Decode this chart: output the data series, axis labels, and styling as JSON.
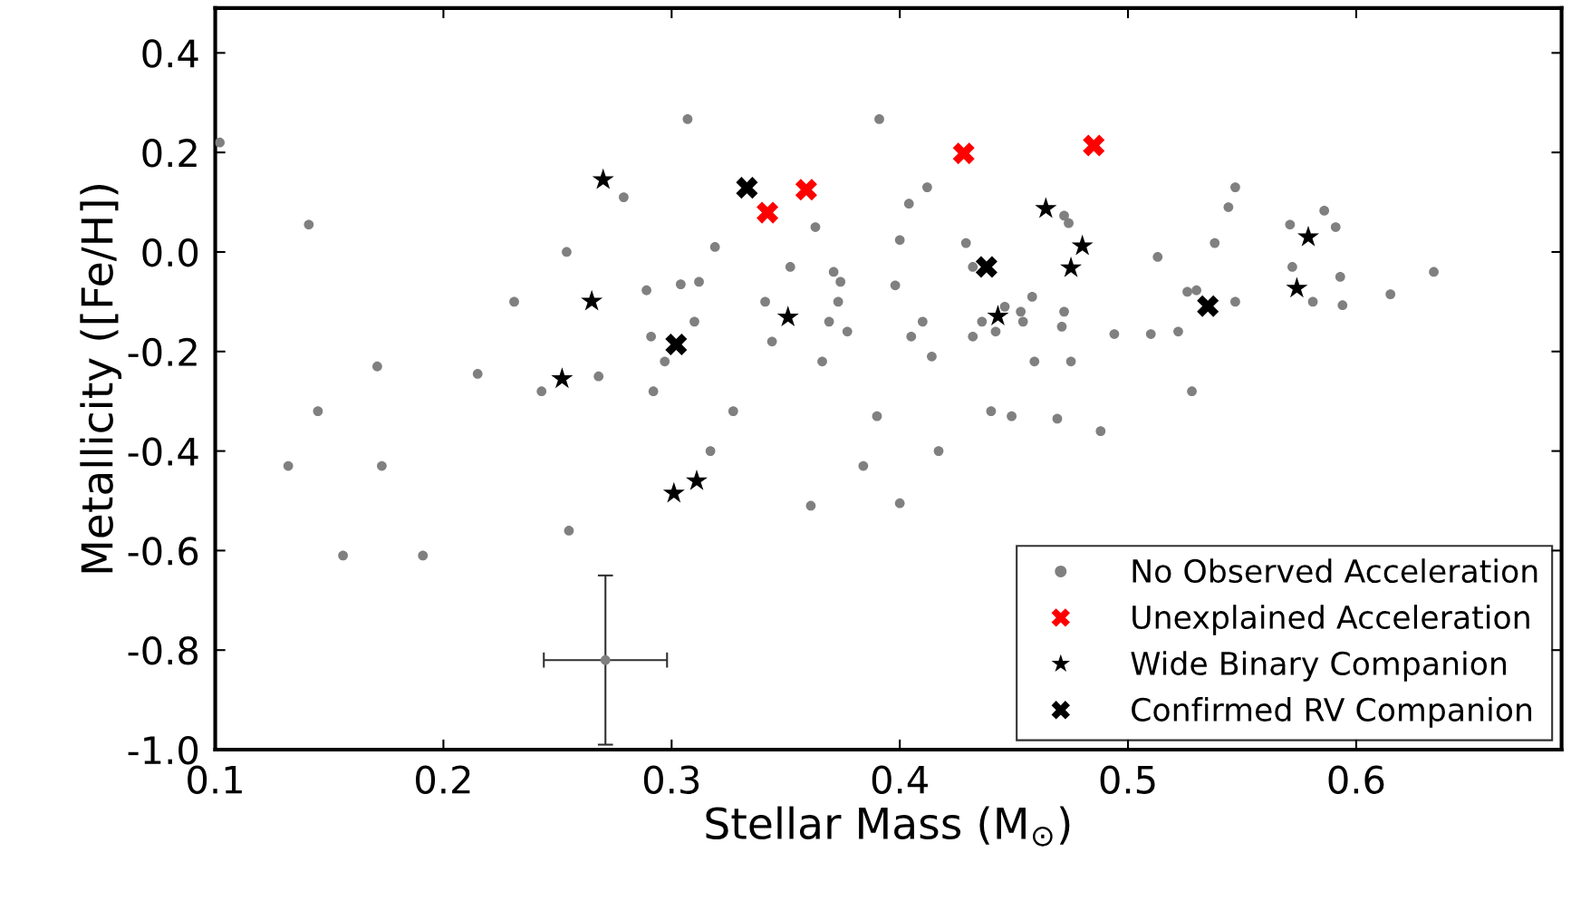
{
  "chart_data": {
    "type": "scatter",
    "xlabel": "Stellar Mass (M$_{⊙}$)",
    "ylabel": "Metallicity ([Fe/H])",
    "xlim": [
      0.1,
      0.69
    ],
    "ylim": [
      -1.0,
      0.49
    ],
    "xticks": [
      0.1,
      0.2,
      0.3,
      0.4,
      0.5,
      0.6
    ],
    "yticks": [
      {
        "value": -1.0,
        "label": "-1.0"
      },
      {
        "value": -0.8,
        "label": "-0.8"
      },
      {
        "value": -0.6,
        "label": "-0.6"
      },
      {
        "value": -0.4,
        "label": "-0.4"
      },
      {
        "value": -0.2,
        "label": "-0.2"
      },
      {
        "value": 0.0,
        "label": "0.0"
      },
      {
        "value": 0.2,
        "label": "0.2"
      },
      {
        "value": 0.4,
        "label": "0.4"
      }
    ],
    "grid": false,
    "legend": "bottom right",
    "series": [
      {
        "name": "No Observed Acceleration",
        "color": "#808080",
        "marker": "circle",
        "x": [
          0.102,
          0.141,
          0.132,
          0.145,
          0.171,
          0.173,
          0.156,
          0.191,
          0.215,
          0.231,
          0.243,
          0.254,
          0.255,
          0.268,
          0.279,
          0.289,
          0.291,
          0.292,
          0.297,
          0.307,
          0.304,
          0.31,
          0.312,
          0.317,
          0.319,
          0.327,
          0.341,
          0.344,
          0.352,
          0.363,
          0.361,
          0.366,
          0.369,
          0.371,
          0.373,
          0.374,
          0.377,
          0.384,
          0.39,
          0.391,
          0.398,
          0.4,
          0.4,
          0.404,
          0.405,
          0.41,
          0.412,
          0.414,
          0.417,
          0.429,
          0.432,
          0.432,
          0.436,
          0.44,
          0.442,
          0.446,
          0.449,
          0.453,
          0.454,
          0.458,
          0.459,
          0.469,
          0.471,
          0.472,
          0.472,
          0.474,
          0.475,
          0.488,
          0.494,
          0.51,
          0.513,
          0.522,
          0.526,
          0.528,
          0.53,
          0.538,
          0.544,
          0.547,
          0.547,
          0.571,
          0.572,
          0.581,
          0.586,
          0.591,
          0.593,
          0.594,
          0.615,
          0.634
        ],
        "values": [
          0.22,
          0.055,
          -0.43,
          -0.32,
          -0.23,
          -0.43,
          -0.61,
          -0.61,
          -0.245,
          -0.1,
          -0.28,
          0.0,
          -0.56,
          -0.25,
          0.11,
          -0.077,
          -0.17,
          -0.28,
          -0.22,
          0.267,
          -0.065,
          -0.14,
          -0.06,
          -0.4,
          0.01,
          -0.32,
          -0.1,
          -0.18,
          -0.03,
          0.05,
          -0.51,
          -0.22,
          -0.14,
          -0.04,
          -0.1,
          -0.06,
          -0.16,
          -0.43,
          -0.33,
          0.267,
          -0.067,
          0.024,
          -0.505,
          0.097,
          -0.17,
          -0.14,
          0.13,
          -0.21,
          -0.4,
          0.018,
          -0.17,
          -0.03,
          -0.14,
          -0.32,
          -0.16,
          -0.11,
          -0.33,
          -0.12,
          -0.14,
          -0.09,
          -0.22,
          -0.335,
          -0.15,
          -0.12,
          0.073,
          0.058,
          -0.22,
          -0.36,
          -0.165,
          -0.165,
          -0.01,
          -0.16,
          -0.08,
          -0.28,
          -0.077,
          0.018,
          0.09,
          0.13,
          -0.1,
          0.055,
          -0.03,
          -0.1,
          0.083,
          0.05,
          -0.05,
          -0.107,
          -0.085,
          -0.04
        ]
      },
      {
        "name": "Unexplained Acceleration",
        "color": "#ff0000",
        "marker": "cross",
        "x": [
          0.342,
          0.359,
          0.428,
          0.485
        ],
        "values": [
          0.079,
          0.125,
          0.198,
          0.214
        ]
      },
      {
        "name": "Wide Binary Companion",
        "color": "#000000",
        "marker": "star",
        "x": [
          0.27,
          0.265,
          0.252,
          0.301,
          0.311,
          0.351,
          0.464,
          0.48,
          0.475,
          0.443,
          0.579,
          0.574
        ],
        "values": [
          0.145,
          -0.099,
          -0.255,
          -0.485,
          -0.46,
          -0.131,
          0.087,
          0.012,
          -0.032,
          -0.129,
          0.03,
          -0.073
        ]
      },
      {
        "name": "Confirmed RV Companion",
        "color": "#000000",
        "marker": "cross",
        "x": [
          0.333,
          0.302,
          0.438,
          0.535
        ],
        "values": [
          0.129,
          -0.186,
          -0.03,
          -0.109
        ]
      },
      {
        "color": "#808080",
        "marker": "circle",
        "x": [
          0.271
        ],
        "values": [
          -0.82
        ],
        "errors": [
          0.17
        ],
        "xerrors": [
          0.027
        ]
      }
    ]
  }
}
